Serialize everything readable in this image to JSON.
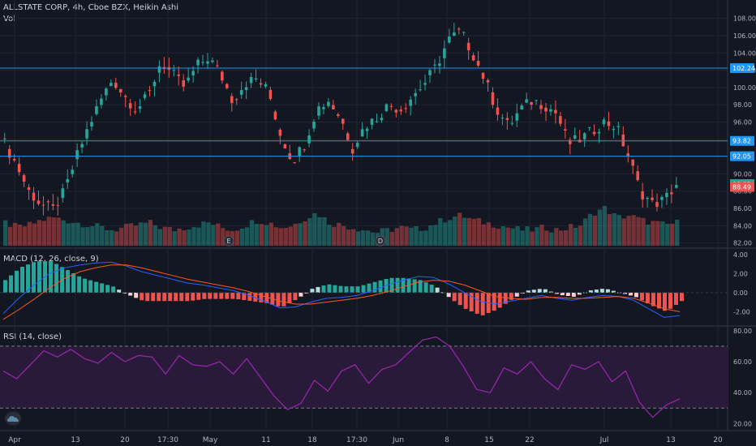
{
  "header": {
    "symbol": "ALLSTATE CORP, 4h, Cboe BZX, Heikin Ashi",
    "vol_label": "Vol"
  },
  "macd": {
    "label": "MACD (12, 26, close, 9)"
  },
  "rsi": {
    "label": "RSI (14, close)"
  },
  "colors": {
    "background": "#131722",
    "up": "#26a69a",
    "down": "#ef5350",
    "grid": "#1f2430",
    "macd_line": "#2962ff",
    "signal_line": "#ff5722",
    "rsi_line": "#9c27b0",
    "rsi_band": "#2a1a3a",
    "hline": "#2196f3"
  },
  "axes": {
    "x_labels": [
      "Apr",
      "13",
      "20",
      "17:30",
      "May",
      "11",
      "18",
      "17:30",
      "Jun",
      "8",
      "15",
      "22",
      "Jul",
      "13",
      "20"
    ],
    "price_ticks": [
      "108.00",
      "106.00",
      "104.00",
      "102.00",
      "100.00",
      "98.00",
      "96.00",
      "94.00",
      "92.00",
      "90.00",
      "88.00",
      "86.00",
      "84.00",
      "82.00"
    ],
    "macd_ticks": [
      "4.00",
      "2.00",
      "0.00",
      "-2.00"
    ],
    "rsi_ticks": [
      "80.00",
      "60.00",
      "40.00",
      "20.00"
    ]
  },
  "price_tags": [
    {
      "label": "102.24",
      "value": 102.24,
      "kind": "hline"
    },
    {
      "label": "93.82",
      "value": 93.82,
      "kind": "hline"
    },
    {
      "label": "92.05",
      "value": 92.05,
      "kind": "hline"
    },
    {
      "label": "88.82",
      "value": 88.82,
      "kind": "last-up"
    },
    {
      "label": "88.49",
      "value": 88.49,
      "kind": "last-down"
    }
  ],
  "events": [
    "E",
    "D"
  ],
  "chart_data": [
    {
      "type": "candlestick",
      "title": "ALLSTATE CORP, 4h, Cboe BZX, Heikin Ashi",
      "ylim": [
        81.5,
        109
      ],
      "hlines": [
        102.24,
        93.82,
        92.05
      ],
      "x": [
        "Apr",
        "13",
        "20",
        "17:30",
        "May",
        "11",
        "18",
        "17:30",
        "Jun",
        "8",
        "15",
        "22",
        "Jul",
        "13",
        "20"
      ],
      "close_keypoints": [
        93.5,
        91.0,
        88.0,
        86.5,
        85.8,
        88.0,
        92.0,
        95.5,
        98.5,
        101.0,
        99.0,
        97.5,
        99.0,
        103.0,
        101.5,
        100.0,
        102.5,
        103.5,
        101.5,
        98.5,
        100.5,
        101.0,
        99.5,
        94.5,
        91.5,
        93.5,
        97.5,
        98.5,
        96.5,
        93.0,
        95.5,
        96.5,
        98.0,
        97.5,
        99.0,
        100.5,
        102.5,
        105.5,
        106.5,
        104.0,
        101.0,
        97.5,
        95.5,
        97.5,
        98.5,
        98.0,
        97.0,
        93.5,
        94.0,
        95.0,
        96.0,
        95.5,
        92.0,
        88.0,
        86.5,
        87.0,
        88.8
      ]
    },
    {
      "type": "bar",
      "title": "Vol",
      "values": [
        8,
        6,
        7,
        9,
        10,
        9,
        8,
        7,
        6,
        5,
        6,
        7,
        8,
        6,
        5,
        6,
        7,
        8,
        6,
        5,
        7,
        9,
        8,
        6,
        7,
        10,
        12,
        8,
        7,
        6,
        5,
        4,
        5,
        6,
        5,
        6,
        8,
        10,
        11,
        9,
        8,
        7,
        6,
        5,
        5,
        6,
        5,
        6,
        7,
        12,
        14,
        10,
        11,
        9,
        8,
        7,
        8
      ]
    },
    {
      "type": "line",
      "title": "MACD (12, 26, close, 9)",
      "ylim": [
        -3.5,
        4.5
      ],
      "series": [
        {
          "name": "MACD",
          "values": [
            -2.2,
            -0.6,
            0.8,
            2.0,
            2.6,
            2.9,
            3.1,
            3.2,
            2.8,
            2.2,
            1.8,
            1.4,
            1.0,
            0.8,
            0.5,
            0.2,
            -0.3,
            -0.9,
            -1.6,
            -1.5,
            -1.0,
            -0.6,
            -0.5,
            -0.3,
            0.2,
            0.8,
            1.3,
            1.7,
            1.6,
            0.9,
            0.0,
            -0.9,
            -1.2,
            -0.9,
            -0.6,
            -0.3,
            -0.6,
            -0.8,
            -0.5,
            -0.3,
            -0.4,
            -0.8,
            -1.7,
            -2.6,
            -2.4
          ]
        },
        {
          "name": "Signal",
          "values": [
            -2.8,
            -1.8,
            -0.7,
            0.5,
            1.5,
            2.2,
            2.6,
            2.9,
            2.9,
            2.6,
            2.2,
            1.8,
            1.4,
            1.1,
            0.8,
            0.5,
            0.1,
            -0.4,
            -0.9,
            -1.2,
            -1.2,
            -1.0,
            -0.8,
            -0.6,
            -0.3,
            0.1,
            0.6,
            1.1,
            1.3,
            1.2,
            0.8,
            0.2,
            -0.4,
            -0.6,
            -0.7,
            -0.5,
            -0.5,
            -0.6,
            -0.6,
            -0.5,
            -0.4,
            -0.6,
            -1.1,
            -1.7,
            -2.0
          ]
        }
      ]
    },
    {
      "type": "line",
      "title": "RSI (14, close)",
      "ylim": [
        16,
        82
      ],
      "hlines": [
        70,
        30
      ],
      "series": [
        {
          "name": "RSI",
          "values": [
            54,
            49,
            58,
            67,
            63,
            68,
            62,
            59,
            66,
            60,
            64,
            63,
            52,
            64,
            58,
            57,
            60,
            52,
            62,
            50,
            38,
            29,
            33,
            48,
            41,
            54,
            58,
            46,
            55,
            58,
            66,
            74,
            76,
            70,
            57,
            42,
            40,
            56,
            52,
            60,
            49,
            42,
            58,
            55,
            60,
            47,
            54,
            34,
            24,
            32,
            36
          ]
        }
      ]
    }
  ]
}
